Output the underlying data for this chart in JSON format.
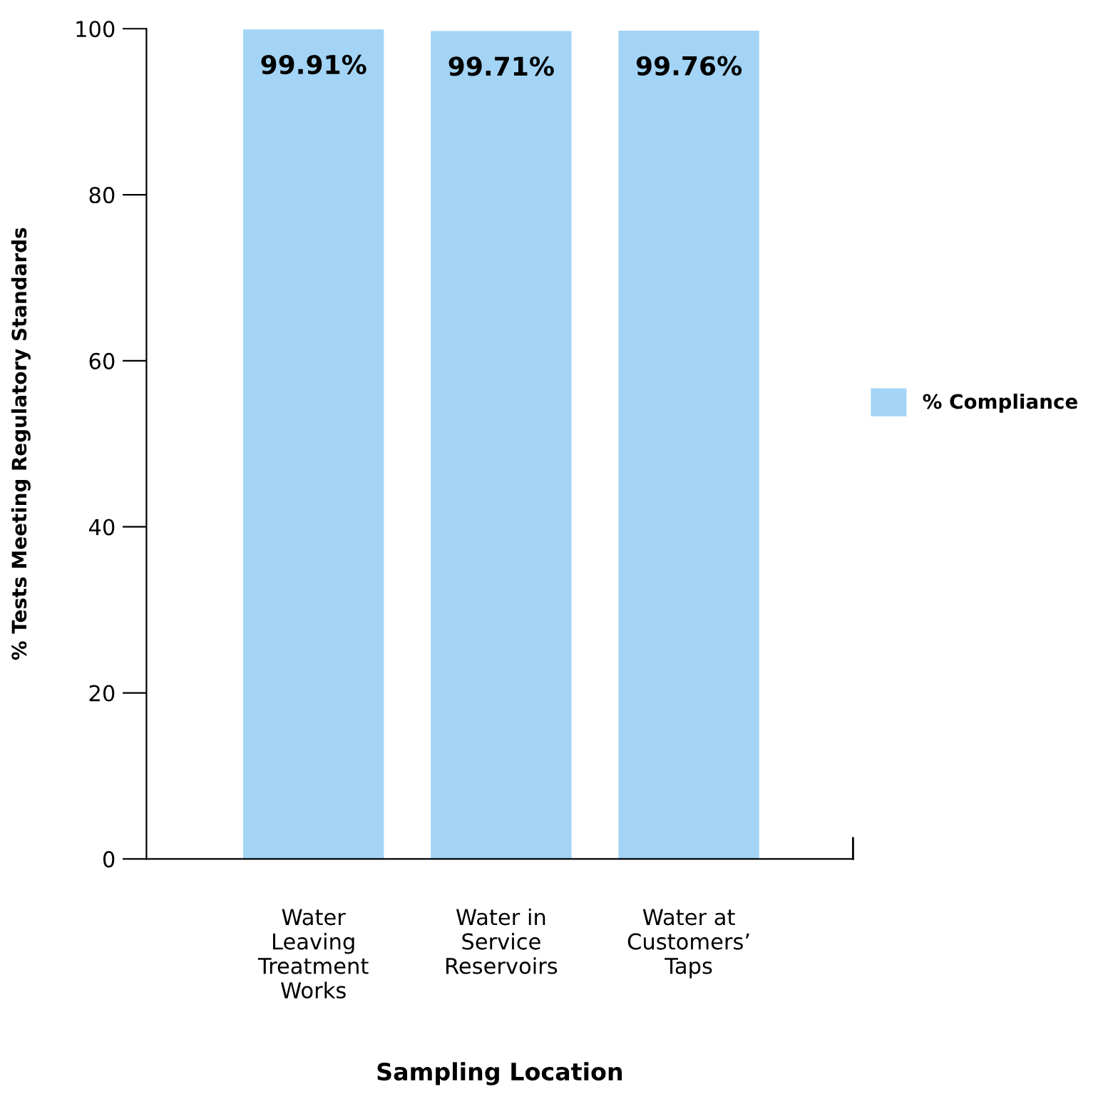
{
  "chart_data": {
    "type": "bar",
    "categories": [
      "Water\nLeaving\nTreatment\nWorks",
      "Water in\nService\nReservoirs",
      "Water at\nCustomers’\nTaps"
    ],
    "series": [
      {
        "name": "% Compliance",
        "color": "#a3d4f5",
        "values": [
          99.91,
          99.71,
          99.76
        ],
        "value_labels": [
          "99.91%",
          "99.71%",
          "99.76%"
        ]
      }
    ],
    "xlabel": "Sampling Location",
    "ylabel": "% Tests Meeting Regulatory Standards",
    "ylim": [
      0,
      100
    ],
    "yticks": [
      0,
      20,
      40,
      60,
      80,
      100
    ],
    "grid": false,
    "legend": "right"
  }
}
